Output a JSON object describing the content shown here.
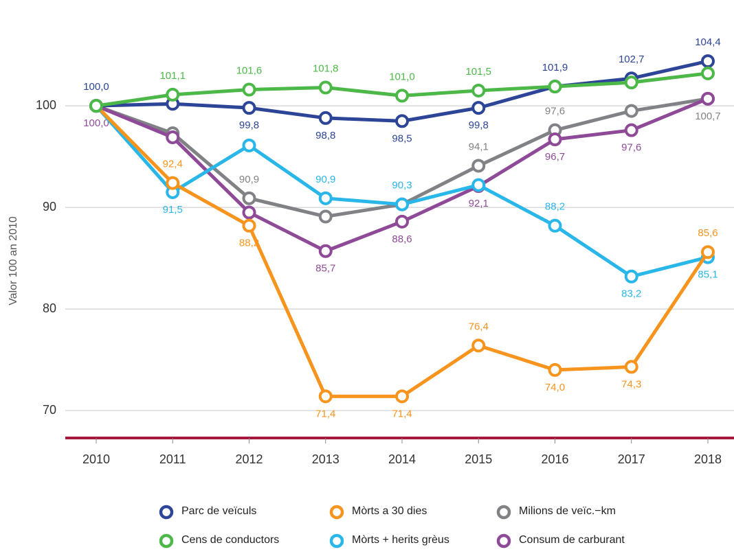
{
  "chart_data": {
    "type": "line",
    "y_label": "Valor 100 an 2010",
    "categories": [
      "2010",
      "2011",
      "2012",
      "2013",
      "2014",
      "2015",
      "2016",
      "2017",
      "2018"
    ],
    "ylim": [
      67.3,
      106.5
    ],
    "yticks": [
      70,
      80,
      90,
      100
    ],
    "grid": true,
    "series": [
      {
        "name": "Parc de veïculs",
        "color": "#2c4597",
        "values": [
          100.0,
          100.2,
          99.8,
          98.8,
          98.5,
          99.8,
          101.9,
          102.7,
          104.4
        ],
        "value_labels": [
          "100,0",
          null,
          "99,8",
          "98,8",
          "98,5",
          "99,8",
          "101,9",
          "102,7",
          "104,4"
        ]
      },
      {
        "name": "Mòrts a 30 dies",
        "color": "#f7941d",
        "values": [
          100.0,
          92.4,
          88.2,
          71.4,
          71.4,
          76.4,
          74.0,
          74.3,
          85.6
        ],
        "value_labels": [
          null,
          "92,4",
          "88,2",
          "71,4",
          "71,4",
          "76,4",
          "74,0",
          "74,3",
          "85,6"
        ]
      },
      {
        "name": "Milions de veïc.−km",
        "color": "#808285",
        "values": [
          100.0,
          97.3,
          90.9,
          89.1,
          90.3,
          94.1,
          97.6,
          99.5,
          100.7
        ],
        "value_labels": [
          null,
          null,
          "90,9",
          null,
          null,
          "94,1",
          "97,6",
          null,
          "100,7"
        ]
      },
      {
        "name": "Cens de conductors",
        "color": "#4cb848",
        "values": [
          100.0,
          101.1,
          101.6,
          101.8,
          101.0,
          101.5,
          101.9,
          102.3,
          103.2
        ],
        "value_labels": [
          null,
          "101,1",
          "101,6",
          "101,8",
          "101,0",
          "101,5",
          null,
          null,
          null
        ]
      },
      {
        "name": "Mòrts + herits grèus",
        "color": "#29b6e8",
        "values": [
          100.0,
          91.5,
          96.1,
          90.9,
          90.3,
          92.2,
          88.2,
          83.2,
          85.1
        ],
        "value_labels": [
          null,
          "91,5",
          null,
          "90,9",
          "90,3",
          null,
          "88,2",
          "83,2",
          "85,1"
        ]
      },
      {
        "name": "Consum de carburant",
        "color": "#8e4a97",
        "values": [
          100.0,
          96.9,
          89.5,
          85.7,
          88.6,
          92.1,
          96.7,
          97.6,
          100.7
        ],
        "value_labels": [
          "100,0",
          null,
          null,
          "85,7",
          "88,6",
          "92,1",
          "96,7",
          "97,6",
          null
        ]
      }
    ]
  }
}
